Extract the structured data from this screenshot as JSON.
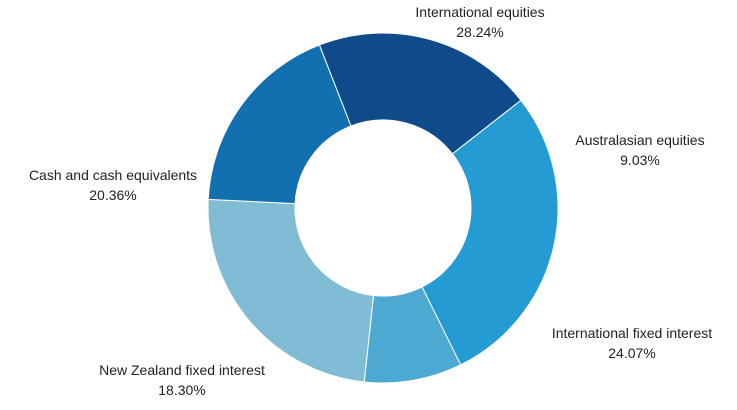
{
  "chart_data": {
    "type": "pie",
    "donut": true,
    "legend": "none",
    "slices": [
      {
        "label": "International equities",
        "value": 28.24,
        "value_label": "28.24%",
        "color": "#249BD3"
      },
      {
        "label": "Australasian equities",
        "value": 9.03,
        "value_label": "9.03%",
        "color": "#4CA9D1"
      },
      {
        "label": "International fixed interest",
        "value": 24.07,
        "value_label": "24.07%",
        "color": "#80BCD3"
      },
      {
        "label": "New Zealand fixed interest",
        "value": 18.3,
        "value_label": "18.30%",
        "color": "#1370B0"
      },
      {
        "label": "Cash and cash equivalents",
        "value": 20.36,
        "value_label": "20.36%",
        "color": "#0F4B8A"
      }
    ]
  }
}
